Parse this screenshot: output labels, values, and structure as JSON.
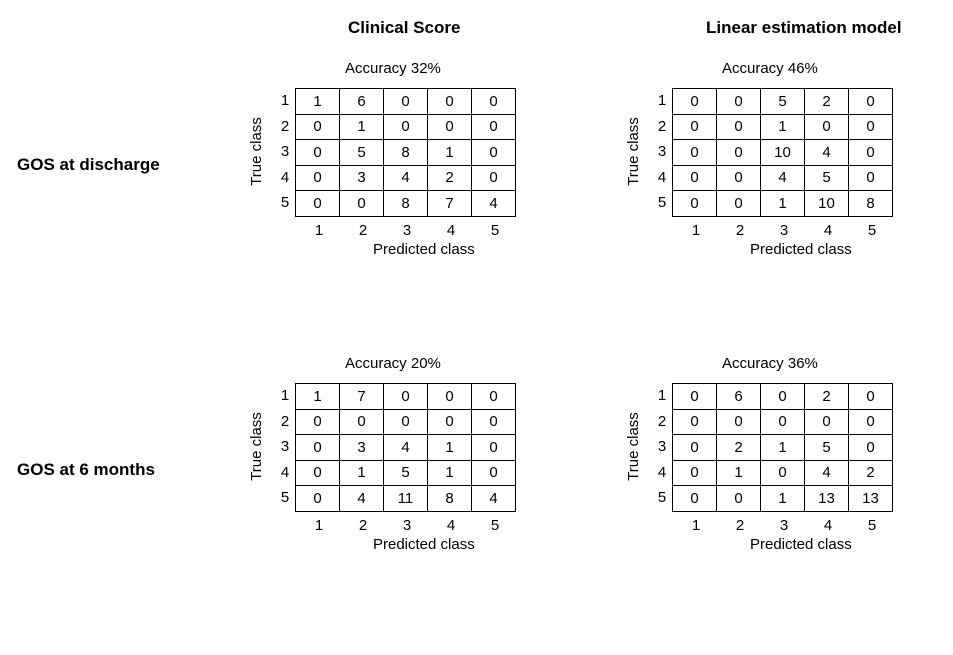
{
  "headers": {
    "clinical": "Clinical Score",
    "linear": "Linear estimation model"
  },
  "rows": {
    "discharge": "GOS at discharge",
    "six_months": "GOS at 6 months"
  },
  "chart_data": [
    {
      "type": "heatmap",
      "title": "Accuracy 32%",
      "xlabel": "Predicted class",
      "ylabel": "True class",
      "x_ticks": [
        "1",
        "2",
        "3",
        "4",
        "5"
      ],
      "y_ticks": [
        "1",
        "2",
        "3",
        "4",
        "5"
      ],
      "matrix": [
        [
          1,
          6,
          0,
          0,
          0
        ],
        [
          0,
          1,
          0,
          0,
          0
        ],
        [
          0,
          5,
          8,
          1,
          0
        ],
        [
          0,
          3,
          4,
          2,
          0
        ],
        [
          0,
          0,
          8,
          7,
          4
        ]
      ]
    },
    {
      "type": "heatmap",
      "title": "Accuracy 46%",
      "xlabel": "Predicted class",
      "ylabel": "True class",
      "x_ticks": [
        "1",
        "2",
        "3",
        "4",
        "5"
      ],
      "y_ticks": [
        "1",
        "2",
        "3",
        "4",
        "5"
      ],
      "matrix": [
        [
          0,
          0,
          5,
          2,
          0
        ],
        [
          0,
          0,
          1,
          0,
          0
        ],
        [
          0,
          0,
          10,
          4,
          0
        ],
        [
          0,
          0,
          4,
          5,
          0
        ],
        [
          0,
          0,
          1,
          10,
          8
        ]
      ]
    },
    {
      "type": "heatmap",
      "title": "Accuracy 20%",
      "xlabel": "Predicted class",
      "ylabel": "True class",
      "x_ticks": [
        "1",
        "2",
        "3",
        "4",
        "5"
      ],
      "y_ticks": [
        "1",
        "2",
        "3",
        "4",
        "5"
      ],
      "matrix": [
        [
          1,
          7,
          0,
          0,
          0
        ],
        [
          0,
          0,
          0,
          0,
          0
        ],
        [
          0,
          3,
          4,
          1,
          0
        ],
        [
          0,
          1,
          5,
          1,
          0
        ],
        [
          0,
          4,
          11,
          8,
          4
        ]
      ]
    },
    {
      "type": "heatmap",
      "title": "Accuracy 36%",
      "xlabel": "Predicted class",
      "ylabel": "True class",
      "x_ticks": [
        "1",
        "2",
        "3",
        "4",
        "5"
      ],
      "y_ticks": [
        "1",
        "2",
        "3",
        "4",
        "5"
      ],
      "matrix": [
        [
          0,
          6,
          0,
          2,
          0
        ],
        [
          0,
          0,
          0,
          0,
          0
        ],
        [
          0,
          2,
          1,
          5,
          0
        ],
        [
          0,
          1,
          0,
          4,
          2
        ],
        [
          0,
          0,
          1,
          13,
          13
        ]
      ]
    }
  ]
}
